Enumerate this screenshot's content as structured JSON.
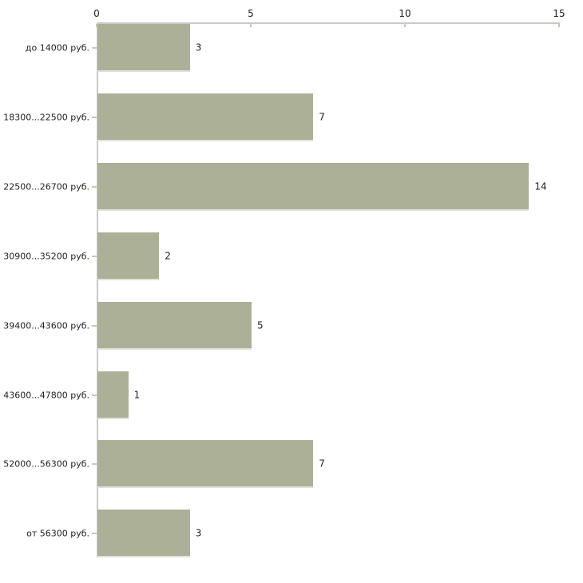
{
  "chart_data": {
    "type": "bar",
    "orientation": "horizontal",
    "title": "",
    "xlabel": "",
    "ylabel": "",
    "categories": [
      "до 14000 руб.",
      "18300...22500 руб.",
      "22500...26700 руб.",
      "30900...35200 руб.",
      "39400...43600 руб.",
      "43600...47800 руб.",
      "52000...56300 руб.",
      "от 56300 руб."
    ],
    "values": [
      3,
      7,
      14,
      2,
      5,
      1,
      7,
      3
    ],
    "xlim": [
      0,
      15
    ],
    "x_ticks": [
      "0",
      "5",
      "10",
      "15"
    ],
    "axis_position": "top",
    "grid": false,
    "legend": false,
    "colors": {
      "bar": "#acb097",
      "bar_bottom_edge": "#e1e1d9",
      "axis_line": "#c9c9c9",
      "tick_mark": "#cfc7a8",
      "text": "#222222",
      "background": "#ffffff"
    }
  }
}
